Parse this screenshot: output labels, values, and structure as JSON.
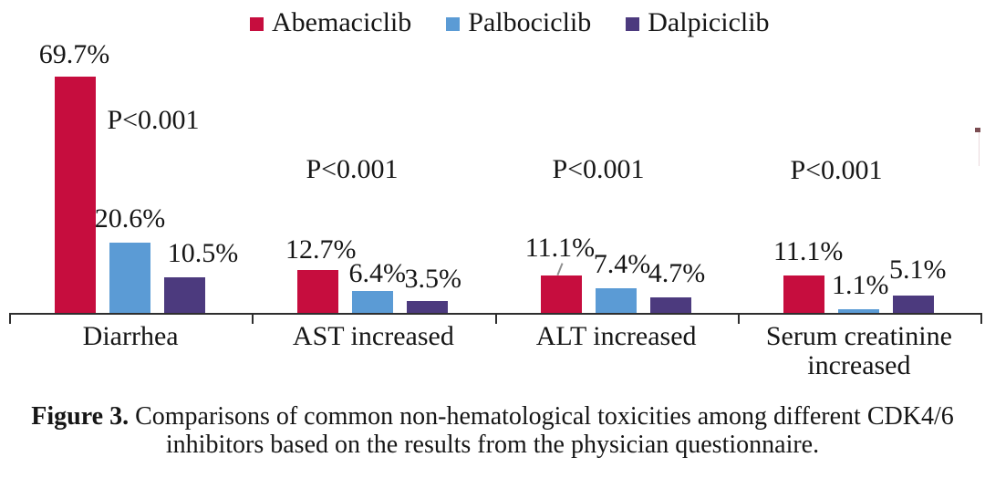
{
  "chart_data": {
    "type": "bar",
    "categories": [
      "Diarrhea",
      "AST increased",
      "ALT increased",
      "Serum creatinine increased"
    ],
    "series": [
      {
        "name": "Abemaciclib",
        "color": "#c60d3e",
        "values": [
          69.7,
          12.7,
          11.1,
          11.1
        ],
        "labels": [
          "69.7%",
          "12.7%",
          "11.1%",
          "11.1%"
        ]
      },
      {
        "name": "Palbociclib",
        "color": "#5b9bd5",
        "values": [
          20.6,
          6.4,
          7.4,
          1.1
        ],
        "labels": [
          "20.6%",
          "6.4%",
          "7.4%",
          "1.1%"
        ]
      },
      {
        "name": "Dalpiciclib",
        "color": "#4c3a7e",
        "values": [
          10.5,
          3.5,
          4.7,
          5.1
        ],
        "labels": [
          "10.5%",
          "3.5%",
          "4.7%",
          "5.1%"
        ]
      }
    ],
    "annotations": {
      "p_values": [
        "P<0.001",
        "P<0.001",
        "P<0.001",
        "P<0.001"
      ]
    },
    "ylim": [
      0,
      75
    ],
    "y_axis_visible": false,
    "grid": false,
    "legend_position": "top",
    "value_label_format": "percent"
  },
  "caption": {
    "prefix": "Figure 3.",
    "line1": " Comparisons of common non-hematological toxicities among different CDK4/6",
    "line2": "inhibitors based on the results from the physician questionnaire."
  }
}
